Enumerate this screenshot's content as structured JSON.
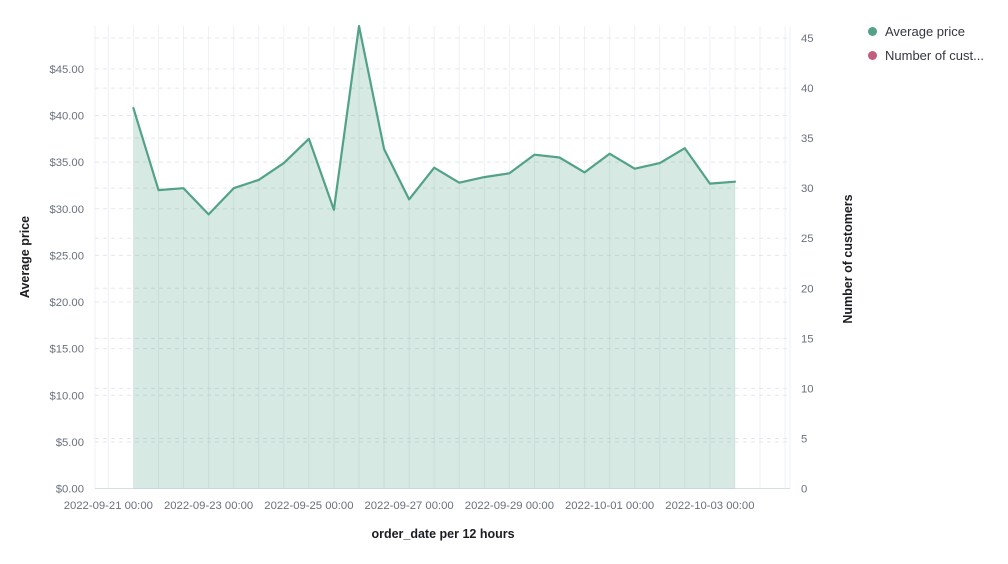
{
  "chart_data": {
    "type": "area",
    "title": "",
    "xlabel": "order_date per 12 hours",
    "ylabel_left": "Average price",
    "ylabel_right": "Number of customers",
    "x": [
      "2022-09-21 12:00",
      "2022-09-22 00:00",
      "2022-09-22 12:00",
      "2022-09-23 00:00",
      "2022-09-23 12:00",
      "2022-09-24 00:00",
      "2022-09-24 12:00",
      "2022-09-25 00:00",
      "2022-09-25 12:00",
      "2022-09-26 00:00",
      "2022-09-26 12:00",
      "2022-09-27 00:00",
      "2022-09-27 12:00",
      "2022-09-28 00:00",
      "2022-09-28 12:00",
      "2022-09-29 00:00",
      "2022-09-29 12:00",
      "2022-09-30 00:00",
      "2022-09-30 12:00",
      "2022-10-01 00:00",
      "2022-10-01 12:00",
      "2022-10-02 00:00",
      "2022-10-02 12:00",
      "2022-10-03 00:00",
      "2022-10-03 12:00"
    ],
    "series": [
      {
        "name": "Average price",
        "color": "#52a287",
        "fill_opacity": 0.24,
        "values": [
          40.8,
          32.0,
          32.2,
          29.4,
          32.2,
          33.1,
          34.9,
          37.5,
          29.9,
          49.6,
          36.4,
          31.0,
          34.4,
          32.8,
          33.4,
          33.8,
          35.8,
          35.5,
          33.9,
          35.9,
          34.3,
          34.9,
          36.5,
          32.7,
          32.9
        ]
      },
      {
        "name": "Number of cust...",
        "color": "#c65b80",
        "fill_opacity": 0.24,
        "values": []
      }
    ],
    "left_axis": {
      "ticks": [
        "$0.00",
        "$5.00",
        "$10.00",
        "$15.00",
        "$20.00",
        "$25.00",
        "$30.00",
        "$35.00",
        "$40.00",
        "$45.00"
      ],
      "tick_step": 5,
      "lim": [
        0,
        49.6
      ]
    },
    "right_axis": {
      "ticks": [
        "0",
        "5",
        "10",
        "15",
        "20",
        "25",
        "30",
        "35",
        "40",
        "45"
      ],
      "tick_step": 5,
      "lim": [
        0,
        46.2
      ]
    },
    "x_ticks": [
      "2022-09-21 00:00",
      "2022-09-23 00:00",
      "2022-09-25 00:00",
      "2022-09-27 00:00",
      "2022-09-29 00:00",
      "2022-10-01 00:00",
      "2022-10-03 00:00"
    ],
    "grid": "light vertical line per 12h; dashed horizontal gridlines for both y axes",
    "legend_position": "top-right"
  },
  "legend": {
    "items": [
      {
        "label": "Average price",
        "color": "#52a287"
      },
      {
        "label": "Number of cust...",
        "color": "#c65b80"
      }
    ]
  },
  "colors": {
    "tick_label": "#69707d",
    "axis_title": "#1a1c21",
    "legend_text": "#343741",
    "grid_vertical": "#eef1f5",
    "grid_dashed": "#e4e8ee",
    "axis_line": "#d8dee8"
  }
}
